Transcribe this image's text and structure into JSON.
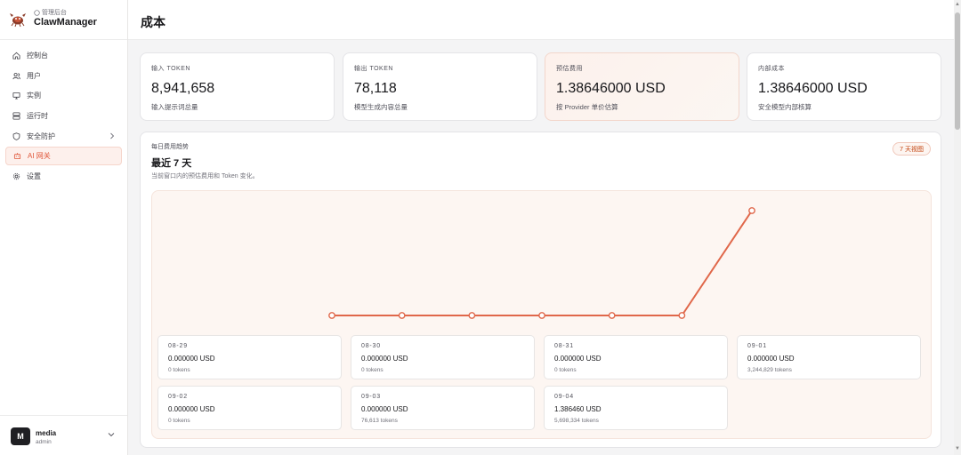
{
  "brand": {
    "subtitle": "管理后台",
    "name": "ClawManager"
  },
  "nav": {
    "items": [
      {
        "label": "控制台",
        "icon": "home-icon"
      },
      {
        "label": "用户",
        "icon": "users-icon"
      },
      {
        "label": "实例",
        "icon": "monitor-icon"
      },
      {
        "label": "运行时",
        "icon": "server-icon"
      },
      {
        "label": "安全防护",
        "icon": "shield-icon"
      },
      {
        "label": "AI 网关",
        "icon": "robot-icon",
        "active": true
      },
      {
        "label": "设置",
        "icon": "gear-icon"
      }
    ]
  },
  "user": {
    "initial": "M",
    "name": "media",
    "role": "admin"
  },
  "page": {
    "title": "成本"
  },
  "stats": [
    {
      "label": "输入 TOKEN",
      "value": "8,941,658",
      "desc": "输入提示词总量"
    },
    {
      "label": "输出 TOKEN",
      "value": "78,118",
      "desc": "模型生成内容总量"
    },
    {
      "label": "预估费用",
      "value": "1.38646000 USD",
      "desc": "按 Provider 单价估算"
    },
    {
      "label": "内部成本",
      "value": "1.38646000 USD",
      "desc": "安全模型内部核算"
    }
  ],
  "trend": {
    "eyebrow": "每日费用趋势",
    "title": "最近 7 天",
    "subtitle": "当前窗口内的预估费用和 Token 变化。",
    "badge": "7 天视图"
  },
  "chart_data": {
    "type": "line",
    "x": [
      "08-29",
      "08-30",
      "08-31",
      "09-01",
      "09-02",
      "09-03",
      "09-04"
    ],
    "series": [
      {
        "values": [
          0,
          0,
          0,
          0,
          0,
          0,
          1.38646
        ]
      }
    ],
    "line_color": "#e0674a"
  },
  "days": [
    {
      "date": "08-29",
      "cost": "0.000000 USD",
      "tokens": "0 tokens"
    },
    {
      "date": "08-30",
      "cost": "0.000000 USD",
      "tokens": "0 tokens"
    },
    {
      "date": "08-31",
      "cost": "0.000000 USD",
      "tokens": "0 tokens"
    },
    {
      "date": "09-01",
      "cost": "0.000000 USD",
      "tokens": "3,244,829 tokens"
    },
    {
      "date": "09-02",
      "cost": "0.000000 USD",
      "tokens": "0 tokens"
    },
    {
      "date": "09-03",
      "cost": "0.000000 USD",
      "tokens": "76,613 tokens"
    },
    {
      "date": "09-04",
      "cost": "1.386460 USD",
      "tokens": "5,698,334 tokens"
    }
  ]
}
